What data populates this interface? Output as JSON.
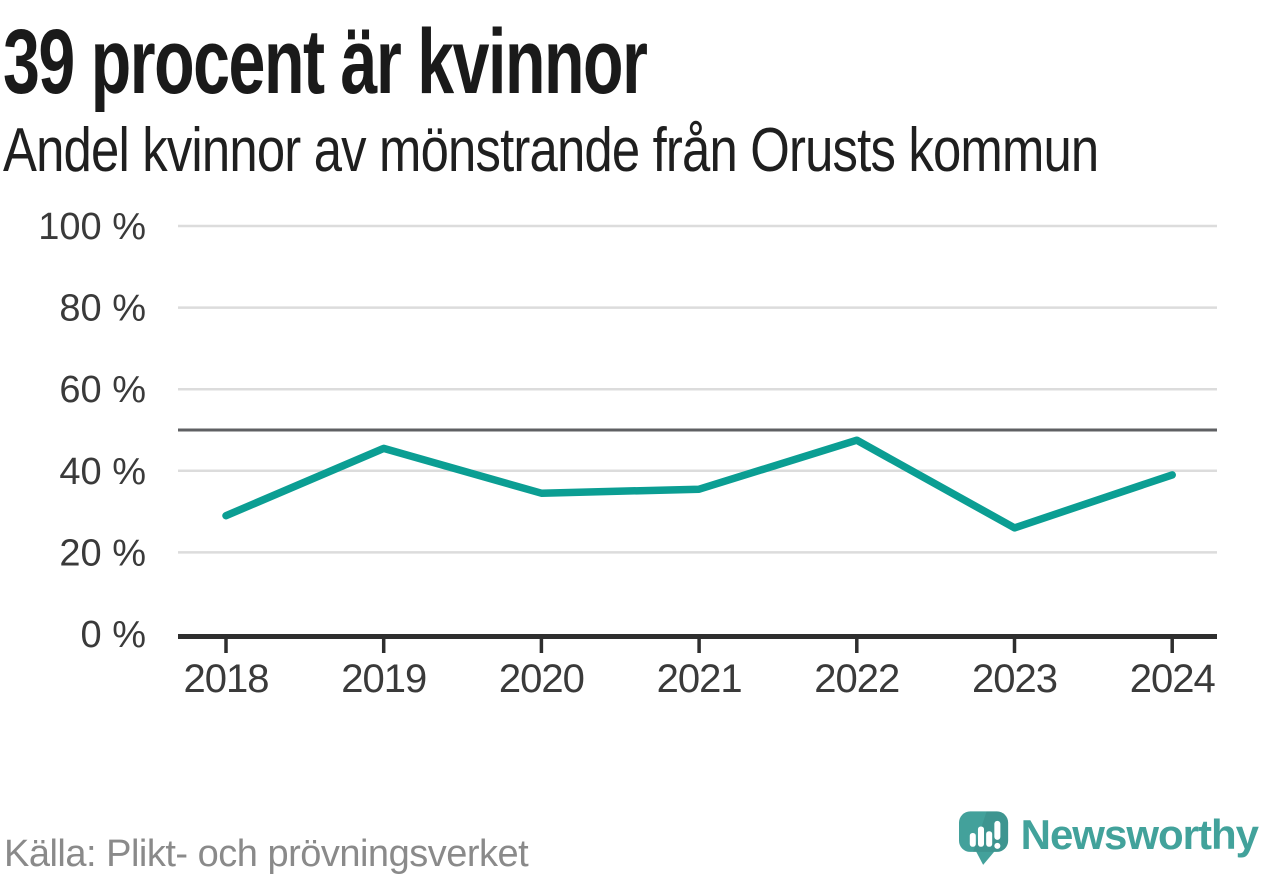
{
  "header": {
    "title": "39 procent är kvinnor",
    "subtitle": "Andel kvinnor av mönstrande från Orusts kommun"
  },
  "chart_data": {
    "type": "line",
    "title": "39 procent är kvinnor",
    "subtitle": "Andel kvinnor av mönstrande från Orusts kommun",
    "x": [
      "2018",
      "2019",
      "2020",
      "2021",
      "2022",
      "2023",
      "2024"
    ],
    "series": [
      {
        "name": "Andel kvinnor av mönstrande",
        "values": [
          29,
          45.5,
          34.5,
          35.5,
          47.5,
          26,
          39
        ]
      }
    ],
    "unit": "%",
    "ylim": [
      0,
      100
    ],
    "yticks": [
      0,
      20,
      40,
      60,
      80,
      100
    ],
    "ytick_labels": [
      "0 %",
      "20 %",
      "40 %",
      "60 %",
      "80 %",
      "100 %"
    ],
    "xlabel": "",
    "ylabel": "",
    "grid": "horizontal",
    "reference_line": {
      "value": 50
    },
    "legend": "none"
  },
  "footer": {
    "source": "Källa: Plikt- och prövningsverket",
    "brand": "Newsworthy"
  },
  "colors": {
    "accent_line": "#0b9e93",
    "gridline": "#dcdcdc",
    "reference_line": "#5f6063",
    "axis": "#2e2e2e",
    "axis_text": "#3a3a3a",
    "title_text": "#1a1a1a",
    "source_text": "#8a8a8a",
    "logo_bubble": "#43a19b",
    "logo_wordmark": "#42a29b"
  }
}
